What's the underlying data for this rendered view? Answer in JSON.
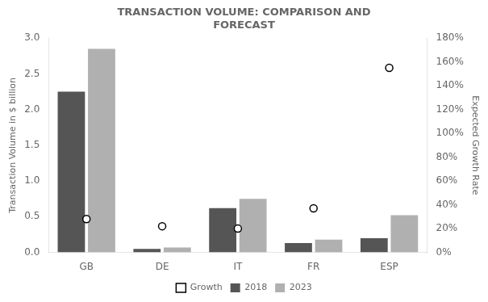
{
  "chart_data": {
    "type": "bar",
    "title": "TRANSACTION VOLUME: COMPARISON AND\nFORECAST",
    "categories": [
      "GB",
      "DE",
      "IT",
      "FR",
      "ESP"
    ],
    "series": [
      {
        "name": "2018",
        "type": "bar",
        "color": "#555555",
        "values": [
          2.25,
          0.05,
          0.62,
          0.13,
          0.2
        ]
      },
      {
        "name": "2023",
        "type": "bar",
        "color": "#b0b0b0",
        "values": [
          2.85,
          0.07,
          0.75,
          0.18,
          0.52
        ]
      },
      {
        "name": "Growth",
        "type": "scatter",
        "axis": "y2",
        "marker": "circle",
        "color": "#000000",
        "values": [
          0.28,
          0.22,
          0.2,
          0.37,
          1.55
        ]
      }
    ],
    "ylabel": "Transaction Volume in $ billion",
    "y2label": "Expected Growth Rate",
    "ylim": [
      0,
      3.0
    ],
    "yticks": [
      {
        "value": 0,
        "label": "0.0"
      },
      0.5,
      {
        "value": 1.0,
        "label": "1.0"
      },
      1.5,
      {
        "value": 2.0,
        "label": "2.0"
      },
      2.5,
      {
        "value": 3.0,
        "label": "3.0"
      }
    ],
    "y2lim": [
      0,
      1.8
    ],
    "y2ticks": [
      {
        "value": 0,
        "label": "0%"
      },
      {
        "value": 0.2,
        "label": "20%"
      },
      {
        "value": 0.4,
        "label": "40%"
      },
      {
        "value": 0.6,
        "label": "60%"
      },
      {
        "value": 0.8,
        "label": "80%"
      },
      {
        "value": 1.0,
        "label": "100%"
      },
      {
        "value": 1.2,
        "label": "120%"
      },
      {
        "value": 1.4,
        "label": "140%"
      },
      {
        "value": 1.6,
        "label": "160%"
      },
      {
        "value": 1.8,
        "label": "180%"
      }
    ],
    "grid": false,
    "legend": "bottom"
  }
}
